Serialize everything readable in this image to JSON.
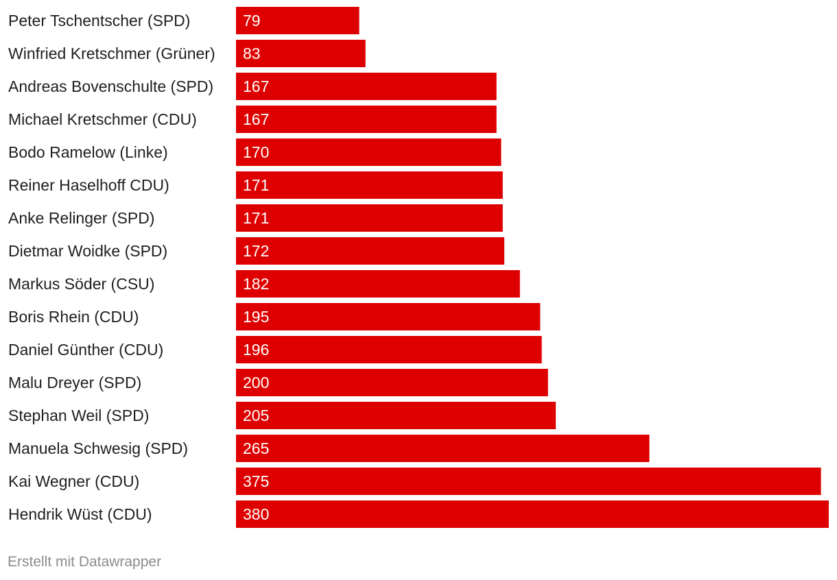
{
  "chart_data": {
    "type": "bar",
    "orientation": "horizontal",
    "categories": [
      "Peter Tschentscher (SPD)",
      "Winfried Kretschmer (Grüner)",
      "Andreas Bovenschulte (SPD)",
      "Michael Kretschmer (CDU)",
      "Bodo Ramelow (Linke)",
      "Reiner Haselhoff CDU)",
      "Anke Relinger (SPD)",
      "Dietmar Woidke (SPD)",
      "Markus Söder (CSU)",
      "Boris Rhein (CDU)",
      "Daniel Günther (CDU)",
      "Malu Dreyer (SPD)",
      "Stephan Weil (SPD)",
      "Manuela Schwesig (SPD)",
      "Kai Wegner (CDU)",
      "Hendrik Wüst (CDU)"
    ],
    "values": [
      79,
      83,
      167,
      167,
      170,
      171,
      171,
      172,
      182,
      195,
      196,
      200,
      205,
      265,
      375,
      380
    ],
    "bar_color": "#de0000",
    "xlim": [
      0,
      380
    ],
    "grid": false,
    "legend": "none"
  },
  "footer": {
    "credit": "Erstellt mit Datawrapper"
  }
}
